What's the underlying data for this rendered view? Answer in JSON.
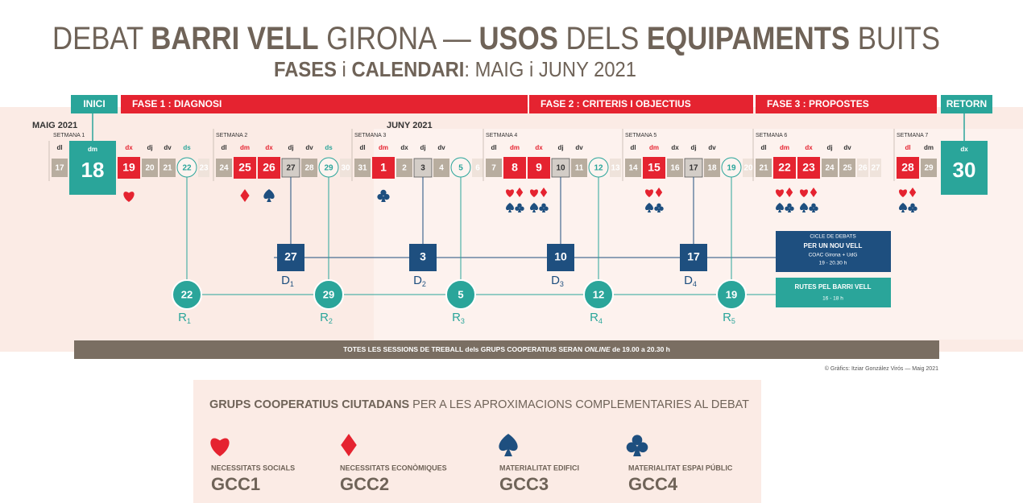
{
  "header": {
    "title": [
      {
        "text": "DEBAT ",
        "bold": false
      },
      {
        "text": "BARRI VELL",
        "bold": true
      },
      {
        "text": " GIRONA — ",
        "bold": false
      },
      {
        "text": "USOS",
        "bold": true
      },
      {
        "text": " DELS ",
        "bold": false
      },
      {
        "text": "EQUIPAMENTS",
        "bold": true
      },
      {
        "text": " BUITS",
        "bold": false
      }
    ],
    "subtitle": [
      {
        "text": "FASES",
        "bold": true
      },
      {
        "text": " i ",
        "bold": false
      },
      {
        "text": "CALENDARI",
        "bold": true
      },
      {
        "text": ": MAIG i JUNY 2021",
        "bold": false
      }
    ]
  },
  "phases": [
    {
      "label": "INICI",
      "color": "#2aa59a"
    },
    {
      "label": "FASE 1 :  DIAGNOSI",
      "color": "#e52330"
    },
    {
      "label": "FASE 2 :  CRITERIS I OBJECTIUS",
      "color": "#e52330"
    },
    {
      "label": "FASE 3 :  PROPOSTES",
      "color": "#e52330"
    },
    {
      "label": "RETORN",
      "color": "#2aa59a"
    }
  ],
  "months": [
    {
      "label": "MAIG 2021"
    },
    {
      "label": "JUNY 2021"
    }
  ],
  "weeks": [
    {
      "label": "SETMANA 1",
      "days": [
        {
          "weekday": "dl",
          "day": "17",
          "kind": "plain"
        },
        {
          "weekday": "dm",
          "day": "18",
          "kind": "big"
        },
        {
          "weekday": "dx",
          "day": "19",
          "kind": "red",
          "suits": [
            "heart"
          ]
        },
        {
          "weekday": "dj",
          "day": "20",
          "kind": "plain"
        },
        {
          "weekday": "dv",
          "day": "21",
          "kind": "plain"
        },
        {
          "weekday": "ds",
          "day": "22",
          "kind": "circle"
        },
        {
          "day": "23",
          "kind": "faint"
        }
      ]
    },
    {
      "label": "SETMANA 2",
      "days": [
        {
          "weekday": "dl",
          "day": "24",
          "kind": "plain"
        },
        {
          "weekday": "dm",
          "day": "25",
          "kind": "red",
          "suits": [
            "diamond"
          ]
        },
        {
          "weekday": "dx",
          "day": "26",
          "kind": "red",
          "suits": [
            "spade"
          ]
        },
        {
          "weekday": "dj",
          "day": "27",
          "kind": "grey"
        },
        {
          "weekday": "dv",
          "day": "28",
          "kind": "plain"
        },
        {
          "weekday": "ds",
          "day": "29",
          "kind": "circle"
        },
        {
          "day": "30",
          "kind": "faint"
        }
      ]
    },
    {
      "label": "SETMANA 3",
      "days": [
        {
          "weekday": "dl",
          "day": "31",
          "kind": "plain"
        },
        {
          "weekday": "dm",
          "day": "1",
          "kind": "red",
          "suits": [
            "club"
          ]
        },
        {
          "weekday": "dx",
          "day": "2",
          "kind": "plain"
        },
        {
          "weekday": "dj",
          "day": "3",
          "kind": "grey"
        },
        {
          "weekday": "dv",
          "day": "4",
          "kind": "plain"
        },
        {
          "day": "5",
          "kind": "circle"
        },
        {
          "day": "6",
          "kind": "faint"
        }
      ]
    },
    {
      "label": "SETMANA 4",
      "days": [
        {
          "weekday": "dl",
          "day": "7",
          "kind": "plain"
        },
        {
          "weekday": "dm",
          "day": "8",
          "kind": "red",
          "suits": [
            "heart",
            "diamond",
            "spade",
            "club"
          ]
        },
        {
          "weekday": "dx",
          "day": "9",
          "kind": "red",
          "suits": [
            "heart",
            "diamond",
            "spade",
            "club"
          ]
        },
        {
          "weekday": "dj",
          "day": "10",
          "kind": "grey"
        },
        {
          "weekday": "dv",
          "day": "11",
          "kind": "plain"
        },
        {
          "day": "12",
          "kind": "circle"
        },
        {
          "day": "13",
          "kind": "faint"
        }
      ]
    },
    {
      "label": "SETMANA 5",
      "days": [
        {
          "weekday": "dl",
          "day": "14",
          "kind": "plain"
        },
        {
          "weekday": "dm",
          "day": "15",
          "kind": "red",
          "suits": [
            "heart",
            "diamond",
            "spade",
            "club"
          ]
        },
        {
          "weekday": "dx",
          "day": "16",
          "kind": "plain"
        },
        {
          "weekday": "dj",
          "day": "17",
          "kind": "grey"
        },
        {
          "weekday": "dv",
          "day": "18",
          "kind": "plain"
        },
        {
          "day": "19",
          "kind": "circle"
        },
        {
          "day": "20",
          "kind": "faint"
        }
      ]
    },
    {
      "label": "SETMANA 6",
      "days": [
        {
          "weekday": "dl",
          "day": "21",
          "kind": "plain"
        },
        {
          "weekday": "dm",
          "day": "22",
          "kind": "red",
          "suits": [
            "heart",
            "diamond",
            "spade",
            "club"
          ]
        },
        {
          "weekday": "dx",
          "day": "23",
          "kind": "red",
          "suits": [
            "heart",
            "diamond",
            "spade",
            "club"
          ]
        },
        {
          "weekday": "dj",
          "day": "24",
          "kind": "plain"
        },
        {
          "weekday": "dv",
          "day": "25",
          "kind": "plain"
        },
        {
          "day": "26",
          "kind": "faint"
        },
        {
          "day": "27",
          "kind": "faint"
        }
      ]
    },
    {
      "label": "SETMANA 7",
      "days": [
        {
          "weekday": "dl",
          "day": "28",
          "kind": "red",
          "suits": [
            "heart",
            "diamond",
            "spade",
            "club"
          ]
        },
        {
          "weekday": "dm",
          "day": "29",
          "kind": "plain"
        },
        {
          "weekday": "dx",
          "day": "30",
          "kind": "big"
        }
      ]
    }
  ],
  "debates": [
    {
      "day": "27",
      "label": "D",
      "sub": "1"
    },
    {
      "day": "3",
      "label": "D",
      "sub": "2"
    },
    {
      "day": "10",
      "label": "D",
      "sub": "3"
    },
    {
      "day": "17",
      "label": "D",
      "sub": "4"
    }
  ],
  "routes": [
    {
      "day": "22",
      "label": "R",
      "sub": "1"
    },
    {
      "day": "29",
      "label": "R",
      "sub": "2"
    },
    {
      "day": "5",
      "label": "R",
      "sub": "3"
    },
    {
      "day": "12",
      "label": "R",
      "sub": "4"
    },
    {
      "day": "19",
      "label": "R",
      "sub": "5"
    }
  ],
  "debate_box": {
    "lines": [
      "CICLE DE DEBATS",
      "PER UN NOU VELL",
      "COAC Girona + UdG",
      "19 - 20.30 h"
    ]
  },
  "route_box": {
    "lines": [
      "RUTES PEL BARRI VELL",
      "16 - 18 h"
    ]
  },
  "footer_bar": [
    {
      "text": "TOTES LES SESSIONS DE TREBALL dels GRUPS COOPERATIUS SERAN "
    },
    {
      "text": "ONLINE",
      "italic": true
    },
    {
      "text": " de 19.00 a 20.30 h"
    }
  ],
  "credit": "© Gràfics: Itziar González Virós —   Maig 2021",
  "groups": {
    "title": [
      {
        "text": "GRUPS COOPERATIUS CIUTADANS",
        "bold": true
      },
      {
        "text": " PER A LES APROXIMACIONS COMPLEMENTARIES AL DEBAT",
        "bold": false
      }
    ],
    "items": [
      {
        "suit": "heart",
        "color": "#e52330",
        "name": "NECESSITATS SOCIALS",
        "code": "GCC1"
      },
      {
        "suit": "diamond",
        "color": "#e52330",
        "name": "NECESSITATS ECONÒMIQUES",
        "code": "GCC2"
      },
      {
        "suit": "spade",
        "color": "#1e4f7f",
        "name": "MATERIALITAT EDIFICI",
        "code": "GCC3"
      },
      {
        "suit": "club",
        "color": "#1e4f7f",
        "name": "MATERIALITAT ESPAI PÚBLIC",
        "code": "GCC4"
      }
    ]
  }
}
